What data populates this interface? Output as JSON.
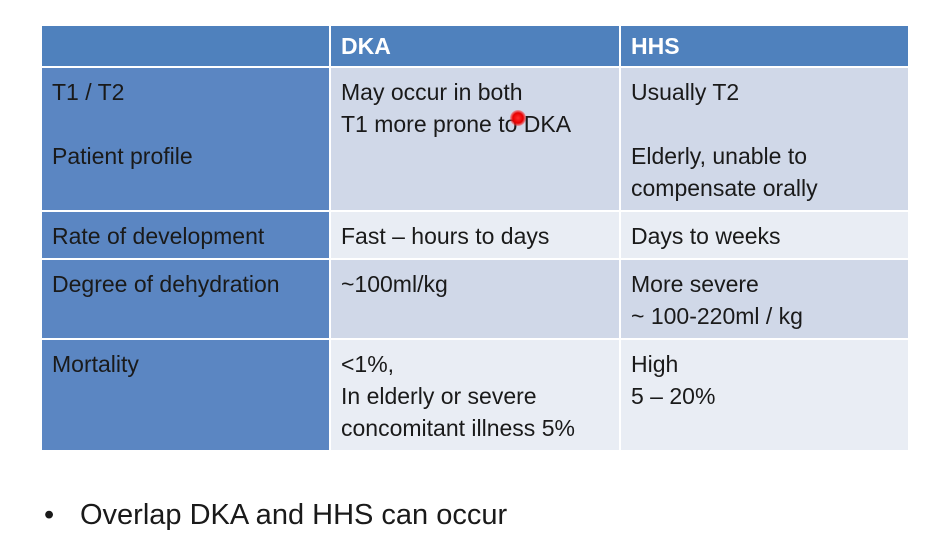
{
  "table": {
    "headers": [
      "",
      "DKA",
      "HHS"
    ],
    "rows": [
      {
        "label_lines": [
          "T1 / T2",
          "",
          "Patient profile"
        ],
        "dka_lines": [
          "May occur in both",
          "T1 more prone to DKA"
        ],
        "hhs_lines": [
          "Usually T2",
          "",
          "Elderly, unable to",
          "compensate orally"
        ]
      },
      {
        "label_lines": [
          "Rate of development"
        ],
        "dka_lines": [
          "Fast – hours to days"
        ],
        "hhs_lines": [
          "Days to weeks"
        ]
      },
      {
        "label_lines": [
          "Degree of dehydration"
        ],
        "dka_lines": [
          "~100ml/kg"
        ],
        "hhs_lines": [
          "More severe",
          "~ 100-220ml / kg"
        ]
      },
      {
        "label_lines": [
          "Mortality"
        ],
        "dka_lines": [
          "<1%,",
          "In elderly or severe",
          "concomitant illness 5%"
        ],
        "hhs_lines": [
          "High",
          "5 – 20%"
        ]
      }
    ]
  },
  "bullet": {
    "symbol": "•",
    "text": "Overlap DKA and HHS can occur"
  },
  "colors": {
    "header_blue": "#4f81bd",
    "row_dark": "#d0d8e8",
    "row_light": "#e9edf4",
    "cursor_red": "#e80000"
  }
}
